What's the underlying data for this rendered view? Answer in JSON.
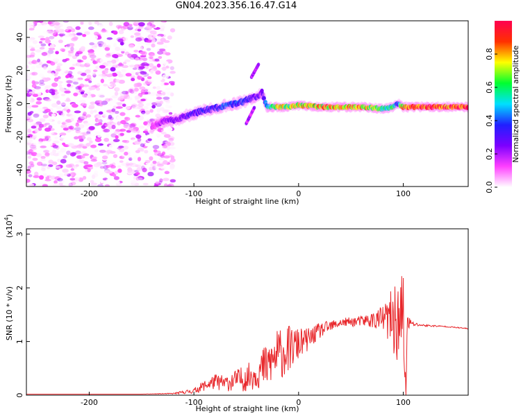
{
  "title": "GN04.2023.356.16.47.G14",
  "colors": {
    "snr_line": "#e8262a",
    "axis": "#000000",
    "scatter": "#6a1fe0",
    "colormap": [
      "#ffffff",
      "#ff40ff",
      "#7c00ff",
      "#2020ff",
      "#00e0ff",
      "#00ff30",
      "#ffff00",
      "#ff3000",
      "#ff0050"
    ]
  },
  "chart_data": [
    {
      "type": "heatmap",
      "xlabel": "Height of straight line (km)",
      "ylabel": "Frequency (Hz)",
      "xlim": [
        -260,
        162
      ],
      "ylim": [
        -50,
        50
      ],
      "xticks": [
        -200,
        -100,
        0,
        100
      ],
      "yticks": [
        -40,
        -20,
        0,
        20,
        40
      ],
      "xtick_labels": [
        "-200",
        "-100",
        "0",
        "100"
      ],
      "ytick_labels": [
        "-40",
        "-20",
        "0",
        "20",
        "40"
      ],
      "colorbar": {
        "label": "Normalized spectral amplitude",
        "range": [
          0,
          1
        ],
        "ticks": [
          0.0,
          0.2,
          0.4,
          0.6,
          0.8
        ],
        "tick_labels": [
          "0.0",
          "0.2",
          "0.4",
          "0.6",
          "0.8"
        ]
      },
      "noise_region": {
        "x": [
          -260,
          -120
        ],
        "y": [
          -50,
          50
        ]
      },
      "signal_track": {
        "x": [
          -140,
          -130,
          -120,
          -110,
          -100,
          -90,
          -80,
          -70,
          -60,
          -50,
          -40,
          -35,
          -30,
          -20,
          -10,
          0,
          20,
          40,
          60,
          80,
          90,
          95,
          100,
          120,
          162
        ],
        "frequency": [
          -14,
          -11,
          -10,
          -8,
          -6,
          -4,
          -3,
          -1,
          0,
          2,
          4,
          7,
          -2,
          -2,
          -2,
          -1,
          -2,
          -2,
          -2,
          -3,
          -2,
          0,
          -2,
          -2,
          -2
        ],
        "amplitude": [
          0.15,
          0.2,
          0.25,
          0.3,
          0.32,
          0.35,
          0.35,
          0.4,
          0.4,
          0.35,
          0.3,
          0.25,
          0.5,
          0.8,
          0.7,
          0.8,
          0.8,
          0.85,
          0.85,
          0.6,
          0.6,
          0.4,
          0.9,
          0.95,
          0.95
        ]
      },
      "side_branches": [
        {
          "x": [
            -50,
            -42
          ],
          "frequency": [
            -12,
            -2
          ]
        },
        {
          "x": [
            -45,
            -38
          ],
          "frequency": [
            16,
            24
          ]
        }
      ]
    },
    {
      "type": "line",
      "xlabel": "Height of straight line (km)",
      "ylabel": "SNR (10 * v/v)",
      "y_scale_label": "(x10",
      "y_scale_exponent": "4",
      "y_scale_suffix": ")",
      "xlim": [
        -260,
        162
      ],
      "ylim": [
        0,
        3.1
      ],
      "xticks": [
        -200,
        -100,
        0,
        100
      ],
      "yticks": [
        0,
        1,
        2,
        3
      ],
      "xtick_labels": [
        "-200",
        "-100",
        "0",
        "100"
      ],
      "ytick_labels": [
        "0",
        "1",
        "2",
        "3"
      ],
      "series": [
        {
          "x": [
            -260,
            -200,
            -150,
            -120,
            -100,
            -90,
            -80,
            -70,
            -60,
            -50,
            -40,
            -30,
            -20,
            -10,
            0,
            10,
            20,
            40,
            60,
            70,
            80,
            90,
            95,
            100,
            102,
            104,
            110,
            120,
            140,
            162
          ],
          "y": [
            0.02,
            0.02,
            0.02,
            0.03,
            0.08,
            0.18,
            0.25,
            0.22,
            0.28,
            0.32,
            0.42,
            0.55,
            0.75,
            0.85,
            0.95,
            1.05,
            1.2,
            1.35,
            1.38,
            1.4,
            1.42,
            1.4,
            1.35,
            1.3,
            0.3,
            1.35,
            1.32,
            1.3,
            1.28,
            1.24
          ],
          "noise": [
            0,
            0,
            0,
            0.01,
            0.05,
            0.1,
            0.15,
            0.15,
            0.2,
            0.25,
            0.3,
            0.45,
            0.5,
            0.45,
            0.3,
            0.2,
            0.15,
            0.08,
            0.1,
            0.15,
            0.25,
            0.6,
            0.8,
            1.2,
            1.5,
            0.15,
            0.04,
            0.02,
            0.01,
            0.01
          ]
        }
      ]
    }
  ]
}
